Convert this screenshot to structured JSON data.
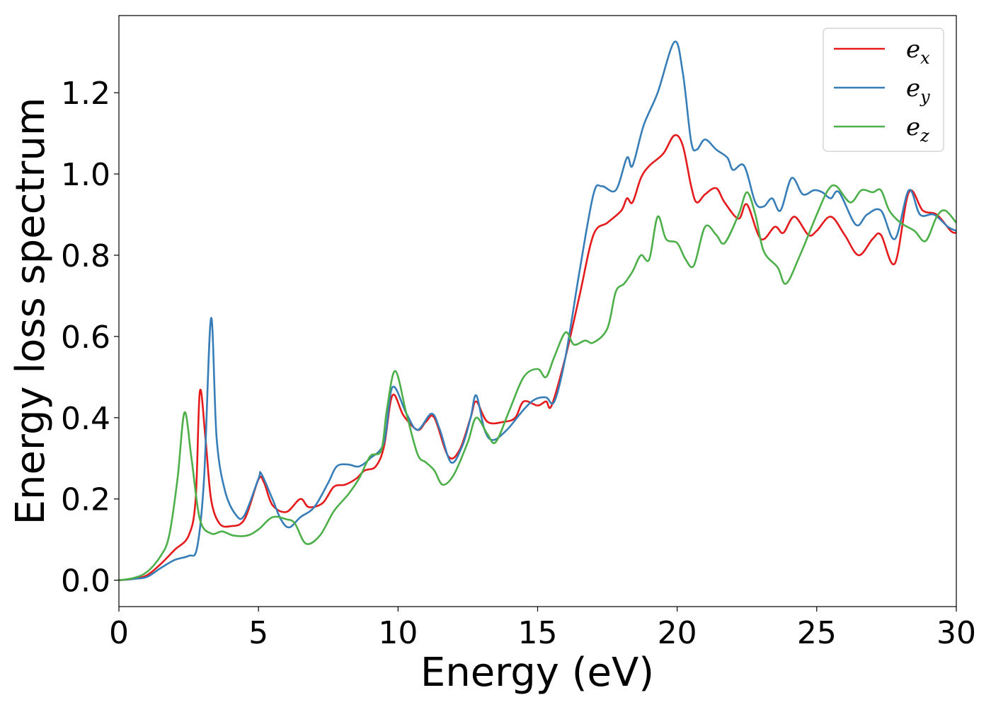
{
  "chart_data": {
    "type": "line",
    "xlabel": "Energy (eV)",
    "ylabel": "Energy loss spectrum",
    "xlim": [
      0,
      30
    ],
    "ylim": [
      -0.065,
      1.39
    ],
    "xticks": [
      0,
      5,
      10,
      15,
      20,
      25,
      30
    ],
    "xtick_labels": [
      "0",
      "5",
      "10",
      "15",
      "20",
      "25",
      "30"
    ],
    "yticks": [
      0.0,
      0.2,
      0.4,
      0.6,
      0.8,
      1.0,
      1.2
    ],
    "ytick_labels": [
      "0.0",
      "0.2",
      "0.4",
      "0.6",
      "0.8",
      "1.0",
      "1.2"
    ],
    "grid": false,
    "legend_position": "top-right",
    "series": [
      {
        "name": "e",
        "subscript": "x",
        "color": "#e41a1c",
        "points": [
          [
            0,
            0
          ],
          [
            0.5,
            0.003
          ],
          [
            1,
            0.012
          ],
          [
            1.5,
            0.04
          ],
          [
            2,
            0.075
          ],
          [
            2.5,
            0.11
          ],
          [
            2.75,
            0.2
          ],
          [
            2.9,
            0.465
          ],
          [
            3.1,
            0.35
          ],
          [
            3.3,
            0.2
          ],
          [
            3.6,
            0.14
          ],
          [
            4,
            0.133
          ],
          [
            4.5,
            0.15
          ],
          [
            5,
            0.248
          ],
          [
            5.2,
            0.24
          ],
          [
            5.5,
            0.185
          ],
          [
            6,
            0.168
          ],
          [
            6.5,
            0.2
          ],
          [
            6.8,
            0.18
          ],
          [
            7.3,
            0.19
          ],
          [
            7.7,
            0.23
          ],
          [
            8.1,
            0.235
          ],
          [
            8.5,
            0.25
          ],
          [
            8.8,
            0.27
          ],
          [
            9.2,
            0.28
          ],
          [
            9.5,
            0.33
          ],
          [
            9.8,
            0.455
          ],
          [
            10.2,
            0.405
          ],
          [
            10.7,
            0.37
          ],
          [
            11,
            0.39
          ],
          [
            11.3,
            0.4
          ],
          [
            11.8,
            0.305
          ],
          [
            12.2,
            0.32
          ],
          [
            12.6,
            0.4
          ],
          [
            12.8,
            0.44
          ],
          [
            13.2,
            0.39
          ],
          [
            13.8,
            0.39
          ],
          [
            14.2,
            0.4
          ],
          [
            14.5,
            0.44
          ],
          [
            15,
            0.43
          ],
          [
            15.3,
            0.44
          ],
          [
            15.5,
            0.43
          ],
          [
            16,
            0.55
          ],
          [
            16.5,
            0.7
          ],
          [
            17,
            0.85
          ],
          [
            17.5,
            0.88
          ],
          [
            18,
            0.91
          ],
          [
            18.2,
            0.94
          ],
          [
            18.4,
            0.93
          ],
          [
            18.7,
            0.99
          ],
          [
            19,
            1.02
          ],
          [
            19.5,
            1.05
          ],
          [
            19.9,
            1.095
          ],
          [
            20.2,
            1.07
          ],
          [
            20.5,
            0.97
          ],
          [
            20.7,
            0.93
          ],
          [
            21,
            0.95
          ],
          [
            21.4,
            0.965
          ],
          [
            21.7,
            0.93
          ],
          [
            22.2,
            0.89
          ],
          [
            22.5,
            0.925
          ],
          [
            23,
            0.84
          ],
          [
            23.5,
            0.87
          ],
          [
            23.8,
            0.855
          ],
          [
            24.2,
            0.895
          ],
          [
            24.7,
            0.85
          ],
          [
            25,
            0.86
          ],
          [
            25.5,
            0.895
          ],
          [
            26,
            0.85
          ],
          [
            26.5,
            0.8
          ],
          [
            27,
            0.84
          ],
          [
            27.3,
            0.85
          ],
          [
            27.8,
            0.78
          ],
          [
            28.3,
            0.955
          ],
          [
            28.8,
            0.91
          ],
          [
            29.3,
            0.9
          ],
          [
            29.8,
            0.86
          ],
          [
            30,
            0.855
          ]
        ]
      },
      {
        "name": "e",
        "subscript": "y",
        "color": "#377eb8",
        "points": [
          [
            0,
            0
          ],
          [
            0.5,
            0.003
          ],
          [
            1,
            0.008
          ],
          [
            1.5,
            0.03
          ],
          [
            2,
            0.05
          ],
          [
            2.5,
            0.06
          ],
          [
            2.8,
            0.08
          ],
          [
            3.05,
            0.25
          ],
          [
            3.3,
            0.645
          ],
          [
            3.5,
            0.35
          ],
          [
            3.8,
            0.22
          ],
          [
            4.2,
            0.16
          ],
          [
            4.5,
            0.16
          ],
          [
            5,
            0.25
          ],
          [
            5.1,
            0.262
          ],
          [
            5.5,
            0.2
          ],
          [
            5.8,
            0.15
          ],
          [
            6.1,
            0.13
          ],
          [
            6.5,
            0.155
          ],
          [
            7,
            0.18
          ],
          [
            7.5,
            0.24
          ],
          [
            7.8,
            0.28
          ],
          [
            8.2,
            0.285
          ],
          [
            8.6,
            0.28
          ],
          [
            9,
            0.3
          ],
          [
            9.5,
            0.34
          ],
          [
            9.8,
            0.475
          ],
          [
            10.3,
            0.41
          ],
          [
            10.7,
            0.37
          ],
          [
            11.2,
            0.41
          ],
          [
            11.5,
            0.37
          ],
          [
            11.9,
            0.29
          ],
          [
            12.3,
            0.33
          ],
          [
            12.6,
            0.4
          ],
          [
            12.8,
            0.455
          ],
          [
            13.1,
            0.37
          ],
          [
            13.4,
            0.345
          ],
          [
            13.9,
            0.37
          ],
          [
            14.5,
            0.42
          ],
          [
            14.9,
            0.445
          ],
          [
            15.3,
            0.45
          ],
          [
            15.6,
            0.44
          ],
          [
            16,
            0.55
          ],
          [
            16.5,
            0.76
          ],
          [
            17,
            0.95
          ],
          [
            17.3,
            0.97
          ],
          [
            17.8,
            0.96
          ],
          [
            18.2,
            1.04
          ],
          [
            18.4,
            1.02
          ],
          [
            18.8,
            1.12
          ],
          [
            19.3,
            1.2
          ],
          [
            19.9,
            1.325
          ],
          [
            20.2,
            1.25
          ],
          [
            20.5,
            1.08
          ],
          [
            20.7,
            1.06
          ],
          [
            21,
            1.085
          ],
          [
            21.4,
            1.06
          ],
          [
            21.8,
            1.04
          ],
          [
            22,
            1.01
          ],
          [
            22.4,
            1.02
          ],
          [
            22.8,
            0.93
          ],
          [
            23.1,
            0.92
          ],
          [
            23.4,
            0.94
          ],
          [
            23.7,
            0.91
          ],
          [
            24.1,
            0.99
          ],
          [
            24.5,
            0.95
          ],
          [
            24.9,
            0.96
          ],
          [
            25.2,
            0.955
          ],
          [
            25.5,
            0.94
          ],
          [
            25.8,
            0.955
          ],
          [
            26.4,
            0.875
          ],
          [
            26.8,
            0.9
          ],
          [
            27.3,
            0.91
          ],
          [
            27.8,
            0.84
          ],
          [
            28.3,
            0.96
          ],
          [
            28.7,
            0.9
          ],
          [
            29.2,
            0.9
          ],
          [
            29.7,
            0.87
          ],
          [
            30,
            0.86
          ]
        ]
      },
      {
        "name": "e",
        "subscript": "z",
        "color": "#4daf4a",
        "points": [
          [
            0,
            0
          ],
          [
            0.5,
            0.005
          ],
          [
            1,
            0.02
          ],
          [
            1.5,
            0.06
          ],
          [
            1.8,
            0.11
          ],
          [
            2.1,
            0.25
          ],
          [
            2.35,
            0.413
          ],
          [
            2.6,
            0.3
          ],
          [
            2.9,
            0.15
          ],
          [
            3.3,
            0.115
          ],
          [
            3.7,
            0.12
          ],
          [
            4.1,
            0.11
          ],
          [
            4.6,
            0.11
          ],
          [
            5,
            0.125
          ],
          [
            5.5,
            0.155
          ],
          [
            6,
            0.15
          ],
          [
            6.3,
            0.14
          ],
          [
            6.7,
            0.09
          ],
          [
            7.2,
            0.11
          ],
          [
            7.7,
            0.17
          ],
          [
            8.2,
            0.21
          ],
          [
            8.6,
            0.25
          ],
          [
            9,
            0.305
          ],
          [
            9.4,
            0.32
          ],
          [
            9.6,
            0.42
          ],
          [
            9.9,
            0.515
          ],
          [
            10.3,
            0.41
          ],
          [
            10.7,
            0.31
          ],
          [
            11,
            0.29
          ],
          [
            11.3,
            0.27
          ],
          [
            11.6,
            0.235
          ],
          [
            12,
            0.26
          ],
          [
            12.5,
            0.34
          ],
          [
            12.8,
            0.4
          ],
          [
            13.2,
            0.36
          ],
          [
            13.5,
            0.34
          ],
          [
            14,
            0.42
          ],
          [
            14.5,
            0.5
          ],
          [
            15,
            0.52
          ],
          [
            15.3,
            0.5
          ],
          [
            15.6,
            0.55
          ],
          [
            16,
            0.61
          ],
          [
            16.3,
            0.58
          ],
          [
            16.7,
            0.59
          ],
          [
            17,
            0.585
          ],
          [
            17.5,
            0.62
          ],
          [
            17.8,
            0.71
          ],
          [
            18.1,
            0.73
          ],
          [
            18.4,
            0.76
          ],
          [
            18.7,
            0.8
          ],
          [
            19,
            0.79
          ],
          [
            19.3,
            0.895
          ],
          [
            19.6,
            0.84
          ],
          [
            20,
            0.83
          ],
          [
            20.3,
            0.79
          ],
          [
            20.6,
            0.775
          ],
          [
            21,
            0.87
          ],
          [
            21.4,
            0.85
          ],
          [
            21.7,
            0.83
          ],
          [
            22.2,
            0.9
          ],
          [
            22.5,
            0.955
          ],
          [
            22.8,
            0.9
          ],
          [
            23.1,
            0.81
          ],
          [
            23.6,
            0.77
          ],
          [
            23.9,
            0.73
          ],
          [
            24.4,
            0.8
          ],
          [
            25,
            0.9
          ],
          [
            25.4,
            0.96
          ],
          [
            25.7,
            0.97
          ],
          [
            26.2,
            0.93
          ],
          [
            26.6,
            0.96
          ],
          [
            27,
            0.955
          ],
          [
            27.3,
            0.96
          ],
          [
            27.6,
            0.91
          ],
          [
            28,
            0.88
          ],
          [
            28.5,
            0.86
          ],
          [
            28.9,
            0.835
          ],
          [
            29.3,
            0.895
          ],
          [
            29.6,
            0.91
          ],
          [
            30,
            0.88
          ]
        ]
      }
    ]
  }
}
